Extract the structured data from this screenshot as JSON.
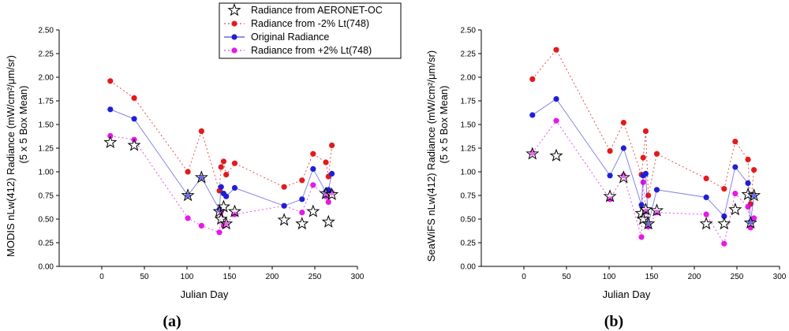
{
  "legend": {
    "entries": [
      {
        "key": "aeronet",
        "label": "Radiance from AERONET-OC"
      },
      {
        "key": "minus2",
        "label": "Radiance from -2% Lt(748)"
      },
      {
        "key": "orig",
        "label": "Original Radiance"
      },
      {
        "key": "plus2",
        "label": "Radiance from +2% Lt(748)"
      }
    ]
  },
  "colors": {
    "minus2": "#e31a1c",
    "orig": "#1f1fd6",
    "plus2": "#e619e6",
    "aeronet_fill": "#ffffff",
    "aeronet_stroke": "#000000"
  },
  "chart_data": [
    {
      "type": "scatter",
      "panel_label": "(a)",
      "xlabel": "Julian Day",
      "ylabel": [
        "MODIS nLw(412) Radiance (mW/cm²/μm/sr)",
        "(5 x 5 Box Mean)"
      ],
      "xlim": [
        -50,
        300
      ],
      "ylim": [
        0,
        2.5
      ],
      "xticks": [
        "0",
        "50",
        "100",
        "150",
        "200",
        "250",
        "300"
      ],
      "yticks": [
        "0.00",
        "0.25",
        "0.50",
        "0.75",
        "1.00",
        "1.25",
        "1.50",
        "1.75",
        "2.00",
        "2.25",
        "2.50"
      ],
      "series": [
        {
          "name": "Radiance from -2% Lt(748)",
          "key": "minus2",
          "style": "dotted-line",
          "x": [
            10,
            38,
            101,
            117,
            138,
            140,
            143,
            146,
            156,
            214,
            235,
            248,
            263,
            266,
            270
          ],
          "y": [
            1.96,
            1.78,
            1.0,
            1.43,
            0.8,
            1.05,
            1.11,
            0.97,
            1.09,
            0.84,
            0.91,
            1.19,
            1.1,
            0.95,
            1.28
          ]
        },
        {
          "name": "Original Radiance",
          "key": "orig",
          "style": "solid-line",
          "x": [
            10,
            38,
            101,
            117,
            138,
            140,
            143,
            146,
            156,
            214,
            235,
            248,
            263,
            266,
            270
          ],
          "y": [
            1.66,
            1.56,
            0.75,
            0.94,
            0.6,
            0.84,
            0.77,
            0.74,
            0.83,
            0.64,
            0.71,
            1.03,
            0.79,
            0.81,
            0.98
          ]
        },
        {
          "name": "Radiance from +2% Lt(748)",
          "key": "plus2",
          "style": "dotted-line",
          "x": [
            10,
            38,
            101,
            117,
            138,
            140,
            143,
            146,
            156,
            214,
            235,
            248,
            263,
            266,
            270
          ],
          "y": [
            1.38,
            1.34,
            0.51,
            0.43,
            0.36,
            0.58,
            0.43,
            0.45,
            0.55,
            0.64,
            0.57,
            0.86,
            0.74,
            0.68,
            0.78
          ]
        },
        {
          "name": "Radiance from AERONET-OC",
          "key": "aeronet",
          "style": "star",
          "x": [
            10,
            38,
            101,
            117,
            138,
            140,
            143,
            146,
            156,
            214,
            235,
            248,
            263,
            266,
            270
          ],
          "y": [
            1.31,
            1.28,
            0.75,
            0.94,
            0.58,
            0.5,
            0.63,
            0.45,
            0.58,
            0.49,
            0.45,
            0.58,
            0.77,
            0.47,
            0.76
          ]
        }
      ]
    },
    {
      "type": "scatter",
      "panel_label": "(b)",
      "xlabel": "Julian Day",
      "ylabel": [
        "SeaWiFS nLw(412) Radiance (mW/cm²/μm/sr)",
        "(5 x 5 Box Mean)"
      ],
      "xlim": [
        -50,
        300
      ],
      "ylim": [
        0,
        2.5
      ],
      "xticks": [
        "0",
        "50",
        "100",
        "150",
        "200",
        "250",
        "300"
      ],
      "yticks": [
        "0.00",
        "0.25",
        "0.50",
        "0.75",
        "1.00",
        "1.25",
        "1.50",
        "1.75",
        "2.00",
        "2.25",
        "2.50"
      ],
      "series": [
        {
          "name": "Radiance from -2% Lt(748)",
          "key": "minus2",
          "style": "dotted-line",
          "x": [
            10,
            38,
            101,
            117,
            138,
            140,
            143,
            146,
            156,
            214,
            235,
            248,
            263,
            266,
            270
          ],
          "y": [
            1.98,
            2.29,
            1.22,
            1.52,
            0.97,
            1.15,
            1.43,
            0.75,
            1.19,
            0.93,
            0.82,
            1.32,
            1.13,
            0.66,
            1.02
          ]
        },
        {
          "name": "Original Radiance",
          "key": "orig",
          "style": "solid-line",
          "x": [
            10,
            38,
            101,
            117,
            138,
            140,
            143,
            146,
            156,
            214,
            235,
            248,
            263,
            266,
            270
          ],
          "y": [
            1.6,
            1.77,
            0.96,
            1.25,
            0.65,
            0.96,
            0.98,
            0.45,
            0.81,
            0.73,
            0.53,
            1.05,
            0.88,
            0.47,
            0.75
          ]
        },
        {
          "name": "Radiance from +2% Lt(748)",
          "key": "plus2",
          "style": "dotted-line",
          "x": [
            10,
            38,
            101,
            117,
            138,
            140,
            143,
            146,
            156,
            214,
            235,
            248,
            263,
            266,
            270
          ],
          "y": [
            1.2,
            1.54,
            0.71,
            0.96,
            0.31,
            0.89,
            0.58,
            0.42,
            0.57,
            0.55,
            0.24,
            0.77,
            0.63,
            0.41,
            0.51
          ]
        },
        {
          "name": "Radiance from AERONET-OC",
          "key": "aeronet",
          "style": "star",
          "x": [
            10,
            38,
            101,
            117,
            138,
            140,
            143,
            146,
            156,
            214,
            235,
            248,
            263,
            266,
            270
          ],
          "y": [
            1.19,
            1.17,
            0.74,
            0.94,
            0.56,
            0.5,
            0.6,
            0.45,
            0.59,
            0.45,
            0.45,
            0.6,
            0.76,
            0.46,
            0.75
          ]
        }
      ]
    }
  ]
}
